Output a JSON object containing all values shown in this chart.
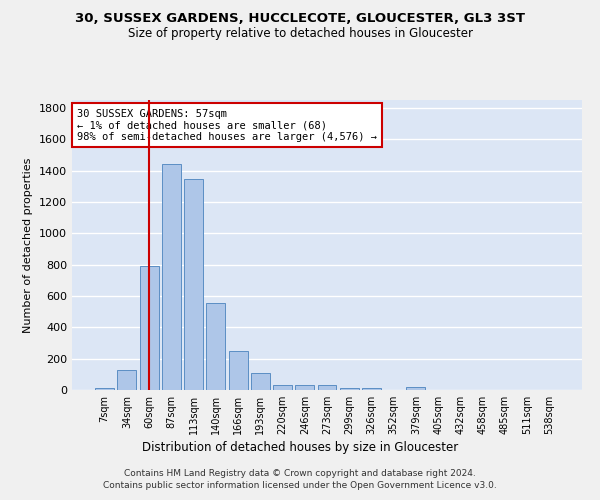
{
  "title": "30, SUSSEX GARDENS, HUCCLECOTE, GLOUCESTER, GL3 3ST",
  "subtitle": "Size of property relative to detached houses in Gloucester",
  "xlabel": "Distribution of detached houses by size in Gloucester",
  "ylabel": "Number of detached properties",
  "categories": [
    "7sqm",
    "34sqm",
    "60sqm",
    "87sqm",
    "113sqm",
    "140sqm",
    "166sqm",
    "193sqm",
    "220sqm",
    "246sqm",
    "273sqm",
    "299sqm",
    "326sqm",
    "352sqm",
    "379sqm",
    "405sqm",
    "432sqm",
    "458sqm",
    "485sqm",
    "511sqm",
    "538sqm"
  ],
  "values": [
    10,
    125,
    790,
    1440,
    1345,
    555,
    250,
    110,
    35,
    30,
    30,
    15,
    15,
    0,
    20,
    0,
    0,
    0,
    0,
    0,
    0
  ],
  "bar_color": "#aec6e8",
  "bar_edge_color": "#5b8ec4",
  "vline_x_index": 2,
  "vline_color": "#cc0000",
  "annotation_text": "30 SUSSEX GARDENS: 57sqm\n← 1% of detached houses are smaller (68)\n98% of semi-detached houses are larger (4,576) →",
  "annotation_box_color": "#cc0000",
  "ylim": [
    0,
    1850
  ],
  "yticks": [
    0,
    200,
    400,
    600,
    800,
    1000,
    1200,
    1400,
    1600,
    1800
  ],
  "background_color": "#dce6f5",
  "grid_color": "#ffffff",
  "fig_bg_color": "#f0f0f0",
  "footer_line1": "Contains HM Land Registry data © Crown copyright and database right 2024.",
  "footer_line2": "Contains public sector information licensed under the Open Government Licence v3.0."
}
